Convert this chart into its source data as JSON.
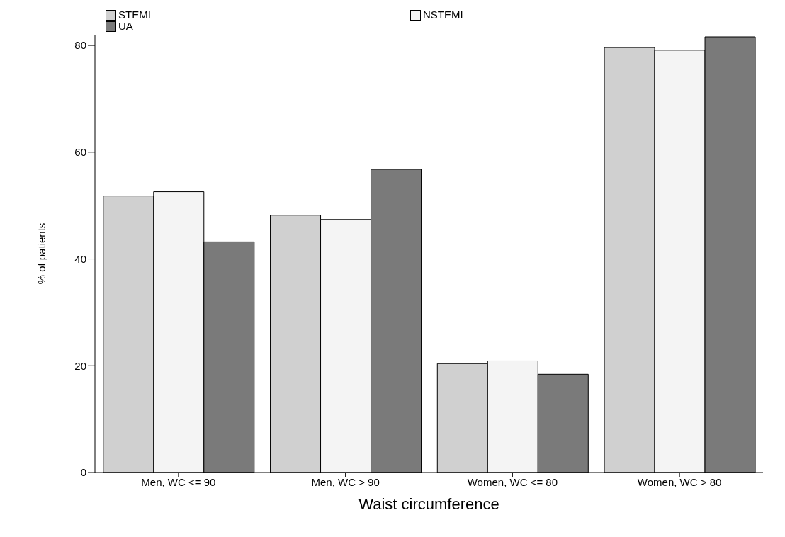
{
  "chart_data": {
    "type": "bar",
    "xlabel": "Waist circumference",
    "ylabel": "% of patients",
    "categories": [
      "Men, WC <= 90",
      "Men, WC > 90",
      "Women, WC <= 80",
      "Women, WC > 80"
    ],
    "series": [
      {
        "name": "STEMI",
        "color": "#d0d0d0",
        "values": [
          51.8,
          48.2,
          20.4,
          79.6
        ]
      },
      {
        "name": "NSTEMI",
        "color": "#f4f4f4",
        "values": [
          52.6,
          47.4,
          20.9,
          79.1
        ]
      },
      {
        "name": "UA",
        "color": "#7a7a7a",
        "values": [
          43.2,
          56.8,
          18.4,
          81.6
        ]
      }
    ],
    "ylim": [
      0,
      82
    ],
    "yticks": [
      0,
      20,
      40,
      60,
      80
    ],
    "grid": false,
    "legend": "top left"
  }
}
